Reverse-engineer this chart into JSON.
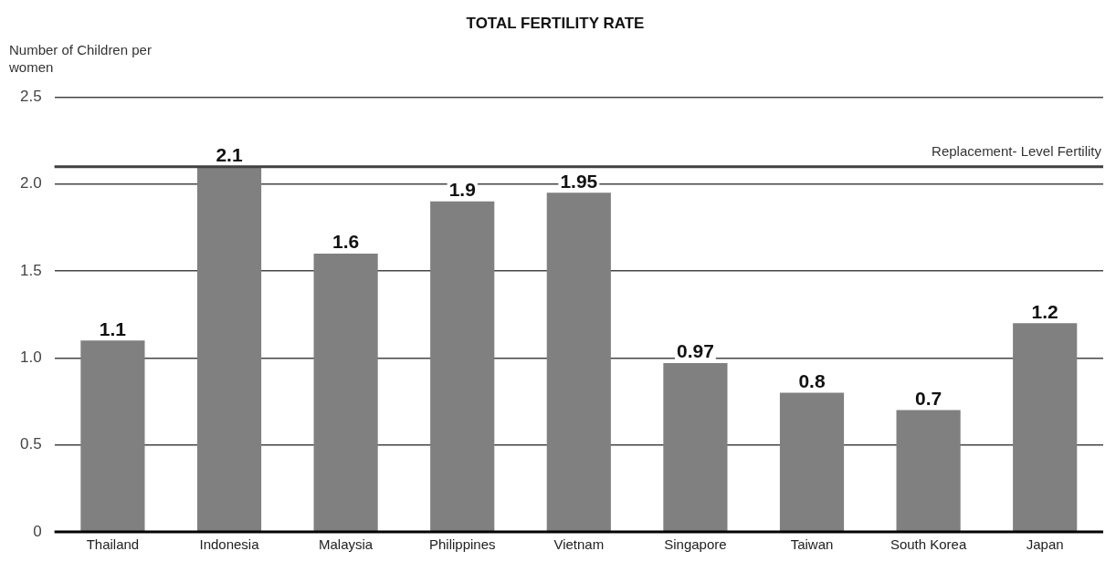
{
  "chart_data": {
    "type": "bar",
    "title": "TOTAL FERTILITY RATE",
    "ylabel": "Number of Children per women",
    "categories": [
      "Thailand",
      "Indonesia",
      "Malaysia",
      "Philippines",
      "Vietnam",
      "Singapore",
      "Taiwan",
      "South Korea",
      "Japan"
    ],
    "values": [
      1.1,
      2.1,
      1.6,
      1.9,
      1.95,
      0.97,
      0.8,
      0.7,
      1.2
    ],
    "color": "#808080",
    "ylim": [
      0,
      2.5
    ],
    "yticks": [
      0,
      0.5,
      {
        "value": 1,
        "label": "1.0"
      },
      1.5,
      {
        "value": 2,
        "label": "2.0"
      },
      2.5
    ],
    "grid": "y",
    "legend": false,
    "data_labels": true,
    "ref_lines": [
      {
        "axis": "y",
        "value": 2.1,
        "label": "Replacement- Level Fertility",
        "color": "#404040"
      }
    ]
  }
}
